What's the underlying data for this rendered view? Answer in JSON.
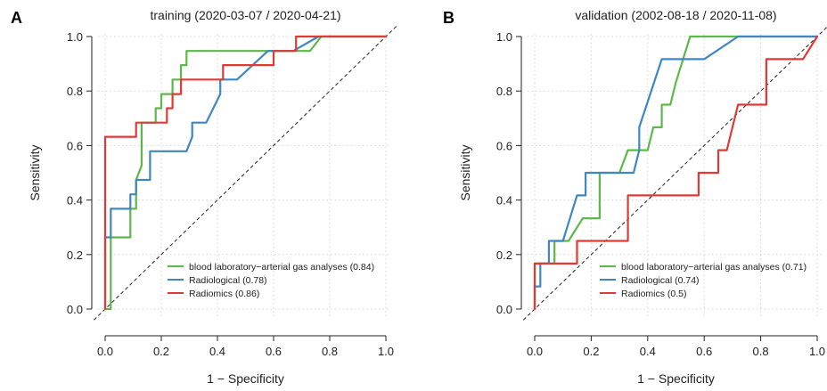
{
  "chart_data": [
    {
      "type": "line",
      "panel": "A",
      "title": "training (2020-03-07 / 2020-04-21)",
      "xlabel": "1 − Specificity",
      "ylabel": "Sensitivity",
      "xlim": [
        0,
        1
      ],
      "ylim": [
        0,
        1
      ],
      "x_ticks": [
        "0.0",
        "0.2",
        "0.4",
        "0.6",
        "0.8",
        "1.0"
      ],
      "y_ticks": [
        "0.0",
        "0.2",
        "0.4",
        "0.6",
        "0.8",
        "1.0"
      ],
      "grid": true,
      "diagonal_reference": true,
      "legend_position": "bottom-right",
      "series": [
        {
          "name": "blood laboratory−arterial gas analyses (0.84)",
          "color": "#5cb84a",
          "x": [
            0,
            0.02,
            0.02,
            0.09,
            0.09,
            0.11,
            0.11,
            0.13,
            0.13,
            0.18,
            0.18,
            0.2,
            0.2,
            0.24,
            0.24,
            0.27,
            0.27,
            0.29,
            0.29,
            0.33,
            0.38,
            0.47,
            0.73,
            0.77,
            0.77,
            1.0
          ],
          "y": [
            0,
            0,
            0.263,
            0.263,
            0.368,
            0.368,
            0.474,
            0.526,
            0.684,
            0.684,
            0.737,
            0.737,
            0.789,
            0.789,
            0.842,
            0.842,
            0.895,
            0.895,
            0.947,
            0.947,
            0.947,
            0.947,
            0.947,
            1.0,
            1.0,
            1.0
          ]
        },
        {
          "name": "Radiological (0.78)",
          "color": "#3e86c4",
          "x": [
            0,
            0,
            0.02,
            0.02,
            0.09,
            0.09,
            0.11,
            0.11,
            0.16,
            0.16,
            0.29,
            0.31,
            0.31,
            0.36,
            0.41,
            0.41,
            0.47,
            0.58,
            0.58,
            0.67,
            0.67,
            0.76,
            0.76,
            1.0
          ],
          "y": [
            0,
            0.263,
            0.263,
            0.368,
            0.368,
            0.421,
            0.421,
            0.474,
            0.474,
            0.579,
            0.579,
            0.632,
            0.684,
            0.684,
            0.789,
            0.842,
            0.842,
            0.947,
            0.947,
            0.947,
            0.947,
            1.0,
            1.0,
            1.0
          ]
        },
        {
          "name": "Radiomics (0.86)",
          "color": "#e03a36",
          "x": [
            0,
            0,
            0.11,
            0.11,
            0.22,
            0.22,
            0.24,
            0.24,
            0.27,
            0.27,
            0.42,
            0.42,
            0.6,
            0.6,
            0.68,
            0.68,
            1.0
          ],
          "y": [
            0,
            0.632,
            0.632,
            0.684,
            0.684,
            0.737,
            0.737,
            0.789,
            0.789,
            0.842,
            0.842,
            0.895,
            0.895,
            0.947,
            0.947,
            1.0,
            1.0
          ]
        }
      ]
    },
    {
      "type": "line",
      "panel": "B",
      "title": "validation (2002-08-18 / 2020-11-08)",
      "xlabel": "1 − Specificity",
      "ylabel": "Sensitivity",
      "xlim": [
        0,
        1
      ],
      "ylim": [
        0,
        1
      ],
      "x_ticks": [
        "0.0",
        "0.2",
        "0.4",
        "0.6",
        "0.8",
        "1.0"
      ],
      "y_ticks": [
        "0.0",
        "0.2",
        "0.4",
        "0.6",
        "0.8",
        "1.0"
      ],
      "grid": true,
      "diagonal_reference": true,
      "legend_position": "bottom-right",
      "series": [
        {
          "name": "blood laboratory−arterial gas analyses (0.71)",
          "color": "#5cb84a",
          "x": [
            0,
            0,
            0.07,
            0.07,
            0.1,
            0.12,
            0.17,
            0.2,
            0.2,
            0.23,
            0.23,
            0.3,
            0.33,
            0.37,
            0.4,
            0.42,
            0.45,
            0.45,
            0.48,
            0.5,
            0.5,
            0.55,
            0.72,
            1.0
          ],
          "y": [
            0,
            0.167,
            0.167,
            0.25,
            0.25,
            0.25,
            0.333,
            0.333,
            0.333,
            0.333,
            0.5,
            0.5,
            0.583,
            0.583,
            0.583,
            0.667,
            0.667,
            0.75,
            0.75,
            0.833,
            0.833,
            1.0,
            1.0,
            1.0
          ]
        },
        {
          "name": "Radiological (0.74)",
          "color": "#3e86c4",
          "x": [
            0,
            0,
            0.02,
            0.02,
            0.05,
            0.05,
            0.1,
            0.15,
            0.15,
            0.18,
            0.18,
            0.35,
            0.37,
            0.37,
            0.45,
            0.6,
            0.72,
            1.0
          ],
          "y": [
            0,
            0.083,
            0.083,
            0.167,
            0.167,
            0.25,
            0.25,
            0.417,
            0.417,
            0.417,
            0.5,
            0.5,
            0.583,
            0.667,
            0.917,
            0.917,
            1.0,
            1.0
          ]
        },
        {
          "name": "Radiomics (0.5)",
          "color": "#e03a36",
          "x": [
            0,
            0,
            0.15,
            0.15,
            0.28,
            0.28,
            0.33,
            0.33,
            0.5,
            0.58,
            0.58,
            0.65,
            0.65,
            0.68,
            0.72,
            0.72,
            0.82,
            0.82,
            0.95,
            1.0
          ],
          "y": [
            0,
            0.167,
            0.167,
            0.25,
            0.25,
            0.25,
            0.25,
            0.417,
            0.417,
            0.417,
            0.5,
            0.5,
            0.583,
            0.583,
            0.75,
            0.75,
            0.75,
            0.917,
            0.917,
            1.0
          ]
        }
      ]
    }
  ]
}
